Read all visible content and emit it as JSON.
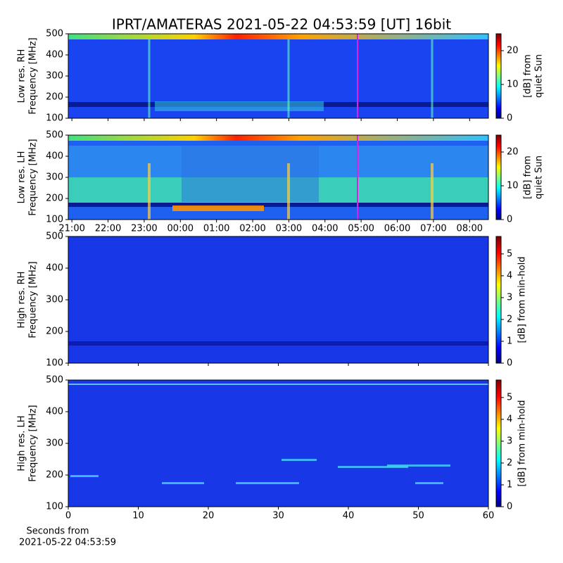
{
  "chart_data": [
    {
      "type": "heatmap",
      "title": "IPRT/AMATERAS 2021-05-22 04:53:59 [UT]   16bit",
      "ylabel": [
        "Low res. RH",
        "Frequency [MHz]"
      ],
      "ylim": [
        100,
        500
      ],
      "yticks": [
        100,
        200,
        300,
        400,
        500
      ],
      "xlim": [
        20.9,
        32.52
      ],
      "cursor": 28.9,
      "cursor_color": "#e020e0",
      "colorbar": {
        "label": [
          "[dB] from",
          "quiet Sun"
        ],
        "lim": [
          0,
          25
        ],
        "ticks": [
          0,
          10,
          20
        ]
      }
    },
    {
      "type": "heatmap",
      "ylabel": [
        "Low res. LH",
        "Frequency [MHz]"
      ],
      "ylim": [
        100,
        500
      ],
      "yticks": [
        100,
        200,
        300,
        400,
        500
      ],
      "xlim": [
        20.9,
        32.52
      ],
      "cursor": 28.9,
      "cursor_color": "#e020e0",
      "xticks": [
        {
          "value": 21,
          "label": "21:00"
        },
        {
          "value": 22,
          "label": "22:00"
        },
        {
          "value": 23,
          "label": "23:00"
        },
        {
          "value": 24,
          "label": "00:00"
        },
        {
          "value": 25,
          "label": "01:00"
        },
        {
          "value": 26,
          "label": "02:00"
        },
        {
          "value": 27,
          "label": "03:00"
        },
        {
          "value": 28,
          "label": "04:00"
        },
        {
          "value": 29,
          "label": "05:00"
        },
        {
          "value": 30,
          "label": "06:00"
        },
        {
          "value": 31,
          "label": "07:00"
        },
        {
          "value": 32,
          "label": "08:00"
        }
      ],
      "colorbar": {
        "label": [
          "[dB] from",
          "quiet Sun"
        ],
        "lim": [
          0,
          25
        ],
        "ticks": [
          0,
          10,
          20
        ]
      }
    },
    {
      "type": "heatmap",
      "ylabel": [
        "High res. RH",
        "Frequency [MHz]"
      ],
      "ylim": [
        100,
        500
      ],
      "yticks": [
        100,
        200,
        300,
        400,
        500
      ],
      "xlim": [
        0,
        60
      ],
      "colorbar": {
        "label": [
          "[dB] from min-hold"
        ],
        "lim": [
          0,
          5.8
        ],
        "ticks": [
          0,
          1,
          2,
          3,
          4,
          5
        ]
      }
    },
    {
      "type": "heatmap",
      "ylabel": [
        "High res. LH",
        "Frequency [MHz]"
      ],
      "ylim": [
        100,
        500
      ],
      "yticks": [
        100,
        200,
        300,
        400,
        500
      ],
      "xlim": [
        0,
        60
      ],
      "xticks": [
        0,
        10,
        20,
        30,
        40,
        50,
        60
      ],
      "xlabel": [
        "Seconds from",
        "2021-05-22 04:53:59"
      ],
      "colorbar": {
        "label": [
          "[dB] from min-hold"
        ],
        "lim": [
          0,
          5.8
        ],
        "ticks": [
          0,
          1,
          2,
          3,
          4,
          5
        ]
      }
    }
  ]
}
